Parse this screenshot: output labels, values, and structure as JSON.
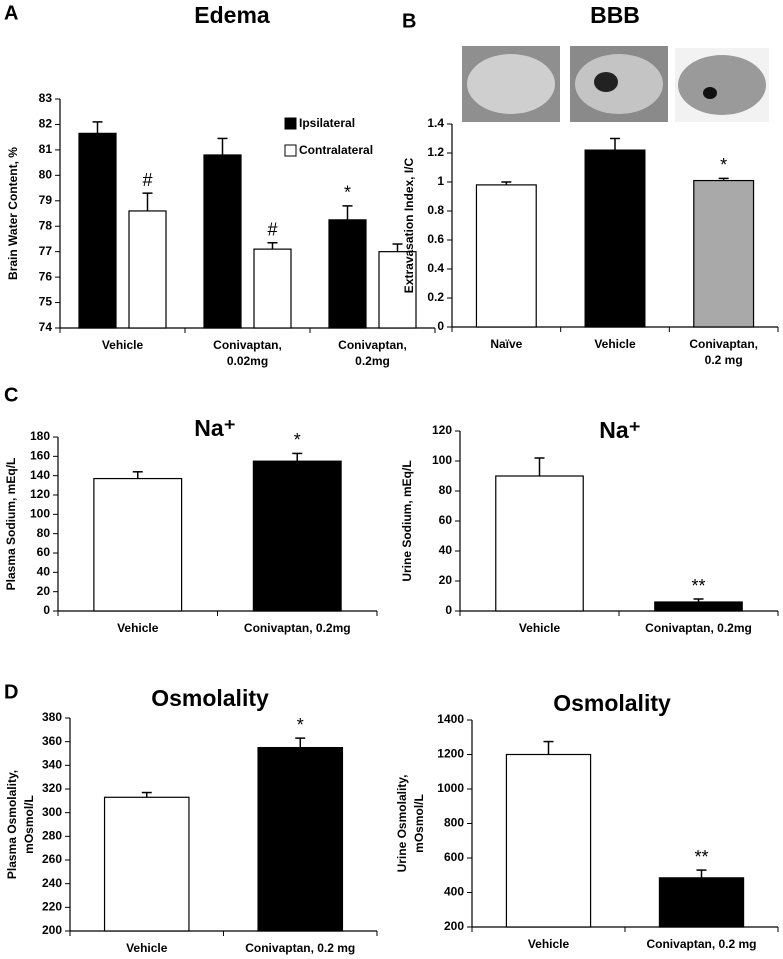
{
  "chart_data": [
    {
      "type": "bar",
      "panel": "A",
      "title": "Edema",
      "ylabel": [
        "Brain Water Content, %"
      ],
      "categories": [
        [
          "Vehicle"
        ],
        [
          "Conivaptan,",
          "0.02mg"
        ],
        [
          "Conivaptan,",
          "0.2mg"
        ]
      ],
      "series": [
        {
          "name": "Ipsilateral",
          "color": "#000000",
          "values": [
            81.65,
            80.8,
            78.25
          ],
          "errors": [
            0.45,
            0.65,
            0.55
          ],
          "significance": [
            null,
            null,
            "*"
          ]
        },
        {
          "name": "Contralateral",
          "color": "#ffffff",
          "values": [
            78.6,
            77.1,
            77.0
          ],
          "errors": [
            0.7,
            0.25,
            0.3
          ],
          "significance": [
            "#",
            "#",
            null
          ]
        }
      ],
      "ylim": [
        74,
        83
      ],
      "yticks": [
        74,
        75,
        76,
        77,
        78,
        79,
        80,
        81,
        82,
        83
      ],
      "legend": "upper right"
    },
    {
      "type": "bar",
      "panel": "B",
      "title": "BBB",
      "ylabel": [
        "Extravasation Index, I/C"
      ],
      "categories": [
        [
          "Naïve"
        ],
        [
          "Vehicle"
        ],
        [
          "Conivaptan,",
          "0.2 mg"
        ]
      ],
      "values": [
        0.98,
        1.22,
        1.01
      ],
      "errors": [
        0.02,
        0.08,
        0.015
      ],
      "colors": [
        "#ffffff",
        "#000000",
        "#a9a9a9"
      ],
      "significance": [
        null,
        null,
        "*"
      ],
      "ylim": [
        0,
        1.4
      ],
      "yticks": [
        0,
        0.2,
        0.4,
        0.6,
        0.8,
        1,
        1.2,
        1.4
      ]
    },
    {
      "type": "bar",
      "panel": "C",
      "title": "Na⁺",
      "ylabel": [
        "Plasma Sodium, mEq/L"
      ],
      "categories": [
        [
          "Vehicle"
        ],
        [
          "Conivaptan, 0.2mg"
        ]
      ],
      "values": [
        137,
        155
      ],
      "errors": [
        7,
        8
      ],
      "colors": [
        "#ffffff",
        "#000000"
      ],
      "significance": [
        null,
        "*"
      ],
      "ylim": [
        0,
        180
      ],
      "yticks": [
        0,
        20,
        40,
        60,
        80,
        100,
        120,
        140,
        160,
        180
      ]
    },
    {
      "type": "bar",
      "title": "Na⁺",
      "ylabel": [
        "Urine Sodium, mEq/L"
      ],
      "categories": [
        [
          "Vehicle"
        ],
        [
          "Conivaptan, 0.2mg"
        ]
      ],
      "values": [
        90,
        6
      ],
      "errors": [
        12,
        2
      ],
      "colors": [
        "#ffffff",
        "#000000"
      ],
      "significance": [
        null,
        "**"
      ],
      "ylim": [
        0,
        120
      ],
      "yticks": [
        0,
        20,
        40,
        60,
        80,
        100,
        120
      ]
    },
    {
      "type": "bar",
      "panel": "D",
      "title": "Osmolality",
      "ylabel": [
        "Plasma Osmolality,",
        "mOsmol/L"
      ],
      "categories": [
        [
          "Vehicle"
        ],
        [
          "Conivaptan, 0.2 mg"
        ]
      ],
      "values": [
        313,
        355
      ],
      "errors": [
        4,
        8
      ],
      "colors": [
        "#ffffff",
        "#000000"
      ],
      "significance": [
        null,
        "*"
      ],
      "ylim": [
        200,
        380
      ],
      "yticks": [
        200,
        220,
        240,
        260,
        280,
        300,
        320,
        340,
        360,
        380
      ]
    },
    {
      "type": "bar",
      "title": "Osmolality",
      "ylabel": [
        "Urine Osmolality,",
        "mOsmol/L"
      ],
      "categories": [
        [
          "Vehicle"
        ],
        [
          "Conivaptan, 0.2 mg"
        ]
      ],
      "values": [
        1200,
        485
      ],
      "errors": [
        75,
        45
      ],
      "colors": [
        "#ffffff",
        "#000000"
      ],
      "significance": [
        null,
        "**"
      ],
      "ylim": [
        200,
        1400
      ],
      "yticks": [
        200,
        400,
        600,
        800,
        1000,
        1200,
        1400
      ]
    }
  ]
}
